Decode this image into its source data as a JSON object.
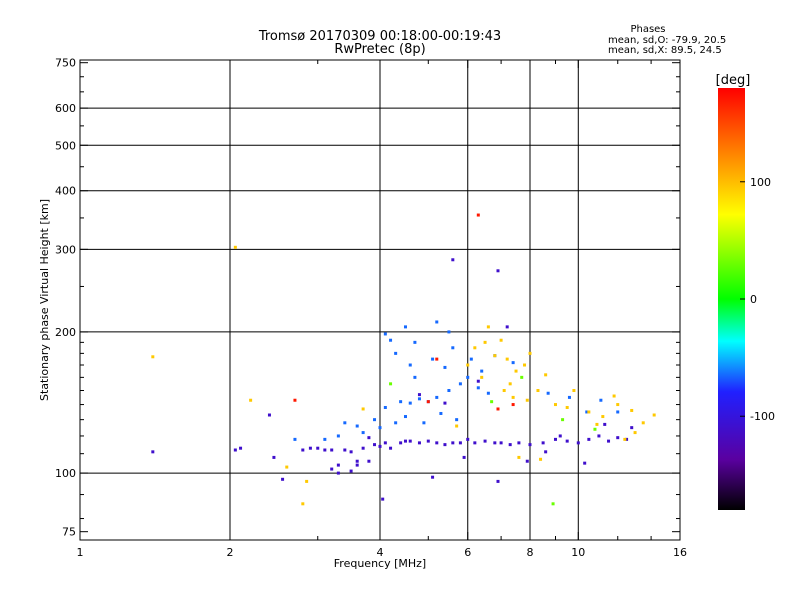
{
  "chart_data": {
    "type": "scatter",
    "title": "Tromsø 20170309 00:18:00-00:19:43",
    "subtitle": "RwPretec (8p)",
    "xlabel": "Frequency [MHz]",
    "ylabel": "Stationary phase Virtual Height [km]",
    "x_scale": "log",
    "y_scale": "log",
    "xlim": [
      1,
      16
    ],
    "ylim": [
      72,
      760
    ],
    "grid": true,
    "x_ticks": [
      1,
      2,
      4,
      6,
      8,
      10,
      16
    ],
    "x_minor_ticks": [
      3,
      5,
      7,
      9,
      12,
      14
    ],
    "y_ticks": [
      75,
      100,
      200,
      300,
      400,
      500,
      600,
      750
    ],
    "x_gridlines": [
      2,
      4,
      6,
      8,
      10
    ],
    "y_gridlines": [
      100,
      200,
      300,
      400,
      500,
      600
    ],
    "phases_header": "Phases",
    "phases_o": "mean, sd,O: -79.9, 20.5",
    "phases_x": "mean, sd,X:  89.5, 24.5",
    "colorbar": {
      "label": "[deg]",
      "min": -180,
      "max": 180,
      "ticks": [
        100,
        0,
        -100
      ],
      "colormap": [
        "#000000",
        "#5a00a0",
        "#2020ff",
        "#00ffff",
        "#00ff00",
        "#ffff00",
        "#ff8000",
        "#ff0000"
      ]
    },
    "series": [
      {
        "phase": -110,
        "points": [
          [
            2.05,
            112
          ],
          [
            2.1,
            113
          ],
          [
            2.4,
            133
          ],
          [
            2.45,
            108
          ],
          [
            2.55,
            97
          ],
          [
            2.8,
            112
          ],
          [
            2.9,
            113
          ],
          [
            3.0,
            113
          ],
          [
            3.1,
            112
          ],
          [
            3.2,
            112
          ],
          [
            3.3,
            104
          ],
          [
            3.4,
            112
          ],
          [
            3.5,
            111
          ],
          [
            3.6,
            106
          ],
          [
            3.7,
            113
          ],
          [
            3.8,
            119
          ],
          [
            3.9,
            115
          ],
          [
            4.0,
            114
          ],
          [
            4.1,
            116
          ],
          [
            4.2,
            113
          ],
          [
            4.4,
            116
          ],
          [
            4.6,
            117
          ],
          [
            4.8,
            116
          ],
          [
            5.0,
            117
          ],
          [
            5.2,
            116
          ],
          [
            5.4,
            115
          ],
          [
            5.6,
            116
          ],
          [
            5.8,
            116
          ],
          [
            6.0,
            118
          ],
          [
            6.2,
            116
          ],
          [
            6.5,
            117
          ],
          [
            6.8,
            116
          ],
          [
            7.0,
            116
          ],
          [
            7.3,
            115
          ],
          [
            7.6,
            116
          ],
          [
            8.0,
            115
          ],
          [
            8.5,
            116
          ],
          [
            9.0,
            118
          ],
          [
            9.5,
            117
          ],
          [
            10.0,
            116
          ],
          [
            10.5,
            118
          ],
          [
            11.0,
            120
          ],
          [
            11.5,
            117
          ],
          [
            12.0,
            119
          ],
          [
            12.5,
            118
          ],
          [
            3.2,
            102
          ],
          [
            3.3,
            100
          ],
          [
            3.5,
            101
          ],
          [
            3.6,
            104
          ],
          [
            3.8,
            106
          ],
          [
            4.5,
            117
          ],
          [
            5.1,
            98
          ],
          [
            5.9,
            108
          ],
          [
            6.9,
            96
          ],
          [
            7.9,
            106
          ],
          [
            8.6,
            111
          ],
          [
            9.2,
            120
          ],
          [
            10.3,
            105
          ],
          [
            11.3,
            127
          ],
          [
            12.8,
            125
          ],
          [
            4.05,
            88
          ],
          [
            5.6,
            285
          ],
          [
            6.9,
            270
          ],
          [
            4.8,
            147
          ],
          [
            5.4,
            141
          ],
          [
            1.4,
            111
          ],
          [
            6.3,
            157
          ],
          [
            7.2,
            205
          ]
        ]
      },
      {
        "phase": -65,
        "points": [
          [
            4.2,
            192
          ],
          [
            4.3,
            180
          ],
          [
            4.5,
            205
          ],
          [
            4.6,
            170
          ],
          [
            4.7,
            160
          ],
          [
            4.4,
            142
          ],
          [
            4.6,
            141
          ],
          [
            4.8,
            144
          ],
          [
            5.0,
            142
          ],
          [
            5.2,
            145
          ],
          [
            5.5,
            150
          ],
          [
            5.8,
            155
          ],
          [
            6.0,
            160
          ],
          [
            6.3,
            152
          ],
          [
            6.6,
            148
          ],
          [
            4.3,
            128
          ],
          [
            4.5,
            132
          ],
          [
            4.9,
            128
          ],
          [
            5.3,
            134
          ],
          [
            5.7,
            130
          ],
          [
            3.4,
            128
          ],
          [
            3.6,
            126
          ],
          [
            3.9,
            130
          ],
          [
            4.1,
            138
          ],
          [
            4.7,
            190
          ],
          [
            5.1,
            175
          ],
          [
            5.4,
            168
          ],
          [
            5.6,
            185
          ],
          [
            6.1,
            175
          ],
          [
            6.4,
            165
          ],
          [
            8.7,
            148
          ],
          [
            9.6,
            145
          ],
          [
            10.4,
            135
          ],
          [
            11.1,
            143
          ],
          [
            12.0,
            135
          ],
          [
            3.1,
            118
          ],
          [
            3.3,
            120
          ],
          [
            3.7,
            122
          ],
          [
            4.0,
            125
          ],
          [
            2.7,
            118
          ],
          [
            5.2,
            210
          ],
          [
            5.5,
            200
          ],
          [
            6.8,
            178
          ],
          [
            7.4,
            172
          ],
          [
            4.1,
            198
          ]
        ]
      },
      {
        "phase": 95,
        "points": [
          [
            6.2,
            185
          ],
          [
            6.5,
            190
          ],
          [
            6.8,
            178
          ],
          [
            7.0,
            192
          ],
          [
            7.2,
            175
          ],
          [
            7.5,
            165
          ],
          [
            7.8,
            170
          ],
          [
            8.0,
            180
          ],
          [
            6.4,
            160
          ],
          [
            7.1,
            150
          ],
          [
            7.4,
            145
          ],
          [
            8.3,
            150
          ],
          [
            9.0,
            140
          ],
          [
            9.5,
            138
          ],
          [
            10.5,
            135
          ],
          [
            11.2,
            132
          ],
          [
            12.0,
            140
          ],
          [
            12.8,
            136
          ],
          [
            13.5,
            128
          ],
          [
            14.2,
            133
          ],
          [
            6.0,
            170
          ],
          [
            6.6,
            205
          ],
          [
            7.3,
            155
          ],
          [
            8.6,
            162
          ],
          [
            9.8,
            150
          ],
          [
            2.05,
            303
          ],
          [
            2.2,
            143
          ],
          [
            3.7,
            137
          ],
          [
            2.6,
            103
          ],
          [
            13.0,
            122
          ],
          [
            7.6,
            108
          ],
          [
            5.7,
            126
          ],
          [
            1.4,
            177
          ],
          [
            2.85,
            96
          ],
          [
            2.8,
            86
          ],
          [
            7.9,
            143
          ],
          [
            10.9,
            127
          ],
          [
            8.4,
            107
          ],
          [
            12.4,
            118
          ],
          [
            11.8,
            146
          ]
        ]
      },
      {
        "phase": 30,
        "points": [
          [
            8.9,
            86
          ],
          [
            7.7,
            160
          ],
          [
            9.3,
            130
          ],
          [
            6.7,
            142
          ],
          [
            10.8,
            124
          ],
          [
            4.2,
            155
          ]
        ]
      },
      {
        "phase": 170,
        "points": [
          [
            6.3,
            355
          ],
          [
            2.7,
            143
          ],
          [
            5.2,
            175
          ],
          [
            6.9,
            137
          ],
          [
            7.4,
            140
          ],
          [
            5.0,
            142
          ]
        ]
      }
    ]
  }
}
